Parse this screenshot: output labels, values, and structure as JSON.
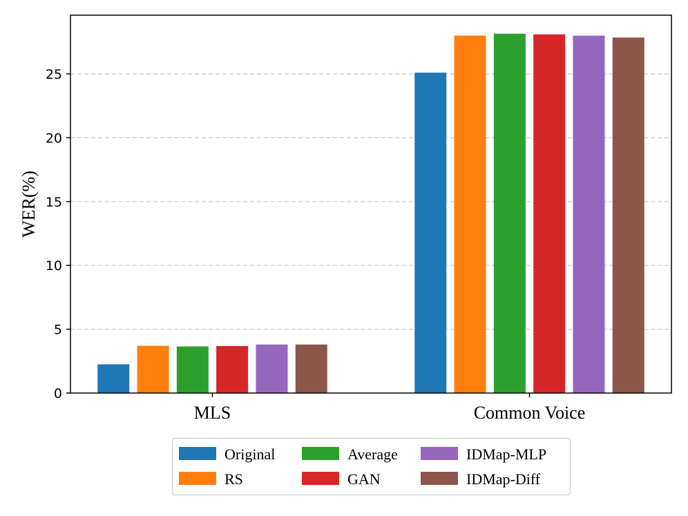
{
  "chart_data": {
    "type": "bar",
    "title": "",
    "xlabel": "",
    "ylabel": "WER(%)",
    "categories": [
      "MLS",
      "Common Voice"
    ],
    "ylim": [
      0,
      29.6
    ],
    "yticks": [
      0,
      5,
      10,
      15,
      20,
      25
    ],
    "grid": "horizontal-dashed",
    "series": [
      {
        "name": "Original",
        "color": "#1f77b4",
        "values": [
          2.25,
          25.1
        ]
      },
      {
        "name": "RS",
        "color": "#ff7f0e",
        "values": [
          3.7,
          28.0
        ]
      },
      {
        "name": "Average",
        "color": "#2ca02c",
        "values": [
          3.65,
          28.15
        ]
      },
      {
        "name": "GAN",
        "color": "#d62728",
        "values": [
          3.68,
          28.1
        ]
      },
      {
        "name": "IDMap-MLP",
        "color": "#9467bd",
        "values": [
          3.8,
          28.0
        ]
      },
      {
        "name": "IDMap-Diff",
        "color": "#8c564b",
        "values": [
          3.8,
          27.85
        ]
      }
    ],
    "legend": {
      "placement": "bottom-center",
      "columns": 3,
      "entries": [
        "Original",
        "RS",
        "Average",
        "GAN",
        "IDMap-MLP",
        "IDMap-Diff"
      ]
    }
  }
}
